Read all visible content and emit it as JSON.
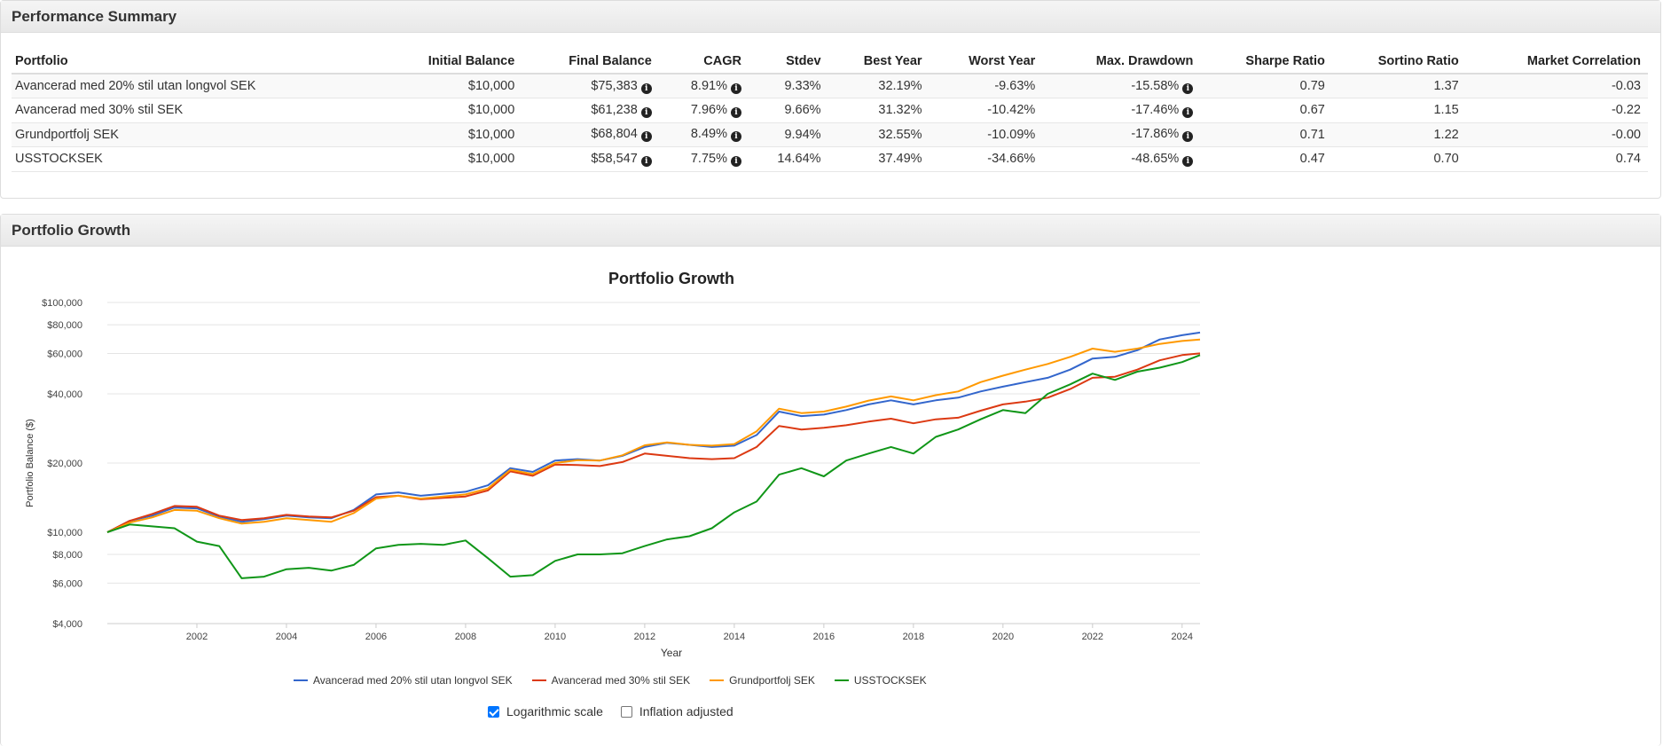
{
  "performance_summary": {
    "heading": "Performance Summary",
    "columns": [
      "Portfolio",
      "Initial Balance",
      "Final Balance",
      "CAGR",
      "Stdev",
      "Best Year",
      "Worst Year",
      "Max. Drawdown",
      "Sharpe Ratio",
      "Sortino Ratio",
      "Market Correlation"
    ],
    "rows": [
      {
        "portfolio": "Avancerad med 20% stil utan longvol SEK",
        "initial": "$10,000",
        "final": "$75,383",
        "cagr": "8.91%",
        "stdev": "9.33%",
        "best": "32.19%",
        "worst": "-9.63%",
        "drawdown": "-15.58%",
        "sharpe": "0.79",
        "sortino": "1.37",
        "correlation": "-0.03"
      },
      {
        "portfolio": "Avancerad med 30% stil SEK",
        "initial": "$10,000",
        "final": "$61,238",
        "cagr": "7.96%",
        "stdev": "9.66%",
        "best": "31.32%",
        "worst": "-10.42%",
        "drawdown": "-17.46%",
        "sharpe": "0.67",
        "sortino": "1.15",
        "correlation": "-0.22"
      },
      {
        "portfolio": "Grundportfolj SEK",
        "initial": "$10,000",
        "final": "$68,804",
        "cagr": "8.49%",
        "stdev": "9.94%",
        "best": "32.55%",
        "worst": "-10.09%",
        "drawdown": "-17.86%",
        "sharpe": "0.71",
        "sortino": "1.22",
        "correlation": "-0.00"
      },
      {
        "portfolio": "USSTOCKSEK",
        "initial": "$10,000",
        "final": "$58,547",
        "cagr": "7.75%",
        "stdev": "14.64%",
        "best": "37.49%",
        "worst": "-34.66%",
        "drawdown": "-48.65%",
        "sharpe": "0.47",
        "sortino": "0.70",
        "correlation": "0.74"
      }
    ],
    "info_icon": "info-circle-icon"
  },
  "portfolio_growth": {
    "heading": "Portfolio Growth",
    "options": {
      "log_scale_label": "Logarithmic scale",
      "log_scale_checked": true,
      "inflation_label": "Inflation adjusted",
      "inflation_checked": false
    }
  },
  "chart_data": {
    "type": "line",
    "title": "Portfolio Growth",
    "xlabel": "Year",
    "ylabel": "Portfolio Balance ($)",
    "y_scale": "log",
    "ylim": [
      4000,
      100000
    ],
    "xlim": [
      2000.0,
      2024.4
    ],
    "x_ticks": [
      2002,
      2004,
      2006,
      2008,
      2010,
      2012,
      2014,
      2016,
      2018,
      2020,
      2022,
      2024
    ],
    "y_ticks": [
      {
        "value": 4000,
        "label": "$4,000"
      },
      {
        "value": 6000,
        "label": "$6,000"
      },
      {
        "value": 8000,
        "label": "$8,000"
      },
      {
        "value": 10000,
        "label": "$10,000"
      },
      {
        "value": 20000,
        "label": "$20,000"
      },
      {
        "value": 40000,
        "label": "$40,000"
      },
      {
        "value": 60000,
        "label": "$60,000"
      },
      {
        "value": 80000,
        "label": "$80,000"
      },
      {
        "value": 100000,
        "label": "$100,000"
      }
    ],
    "grid": true,
    "legend_position": "bottom",
    "x": [
      2000.0,
      2000.5,
      2001.0,
      2001.5,
      2002.0,
      2002.5,
      2003.0,
      2003.5,
      2004.0,
      2004.5,
      2005.0,
      2005.5,
      2006.0,
      2006.5,
      2007.0,
      2007.5,
      2008.0,
      2008.5,
      2009.0,
      2009.5,
      2010.0,
      2010.5,
      2011.0,
      2011.5,
      2012.0,
      2012.5,
      2013.0,
      2013.5,
      2014.0,
      2014.5,
      2015.0,
      2015.5,
      2016.0,
      2016.5,
      2017.0,
      2017.5,
      2018.0,
      2018.5,
      2019.0,
      2019.5,
      2020.0,
      2020.5,
      2021.0,
      2021.5,
      2022.0,
      2022.5,
      2023.0,
      2023.5,
      2024.0,
      2024.4
    ],
    "series": [
      {
        "name": "Avancerad med 20% stil utan longvol SEK",
        "color": "#3366cc",
        "values": [
          10000,
          11200,
          11800,
          12800,
          12700,
          11700,
          11100,
          11400,
          11800,
          11600,
          11500,
          12500,
          14600,
          14900,
          14400,
          14700,
          15000,
          16000,
          19000,
          18300,
          20500,
          20800,
          20500,
          21500,
          23500,
          24500,
          24000,
          23500,
          23800,
          26500,
          33500,
          32000,
          32500,
          34000,
          36000,
          37500,
          36000,
          37500,
          38500,
          41000,
          43000,
          45000,
          47000,
          51000,
          57000,
          58000,
          62000,
          69000,
          72000,
          74000
        ]
      },
      {
        "name": "Avancerad med 30% stil SEK",
        "color": "#dc3912",
        "values": [
          10000,
          11200,
          12000,
          13000,
          12900,
          11800,
          11300,
          11500,
          11900,
          11700,
          11600,
          12400,
          14200,
          14400,
          13900,
          14100,
          14300,
          15200,
          18400,
          17600,
          19700,
          19600,
          19400,
          20200,
          22000,
          21500,
          21000,
          20800,
          21000,
          23500,
          29000,
          28000,
          28500,
          29200,
          30300,
          31200,
          29800,
          31000,
          31500,
          33800,
          36000,
          37000,
          38500,
          42000,
          47000,
          47500,
          51000,
          56000,
          59000,
          60000
        ]
      },
      {
        "name": "Grundportfolj SEK",
        "color": "#ff9900",
        "values": [
          10000,
          11000,
          11600,
          12500,
          12400,
          11500,
          10900,
          11100,
          11500,
          11300,
          11100,
          12100,
          14000,
          14400,
          14000,
          14300,
          14600,
          15500,
          18700,
          17900,
          20000,
          20600,
          20500,
          21600,
          23900,
          24600,
          24000,
          23800,
          24200,
          27500,
          34500,
          33000,
          33500,
          35200,
          37400,
          39000,
          37500,
          39500,
          41000,
          45000,
          48000,
          51000,
          54000,
          58000,
          63000,
          61000,
          63000,
          66000,
          68000,
          69000
        ]
      },
      {
        "name": "USSTOCKSEK",
        "color": "#109618",
        "values": [
          10000,
          10800,
          10600,
          10400,
          9100,
          8700,
          6300,
          6400,
          6900,
          7000,
          6800,
          7200,
          8500,
          8800,
          8900,
          8800,
          9200,
          7700,
          6400,
          6500,
          7500,
          8000,
          8000,
          8100,
          8700,
          9300,
          9600,
          10400,
          12200,
          13600,
          17800,
          19000,
          17500,
          20500,
          22000,
          23500,
          22000,
          26000,
          28000,
          31000,
          34000,
          33000,
          40000,
          44000,
          49000,
          46000,
          50000,
          52000,
          55000,
          59000
        ]
      }
    ]
  }
}
